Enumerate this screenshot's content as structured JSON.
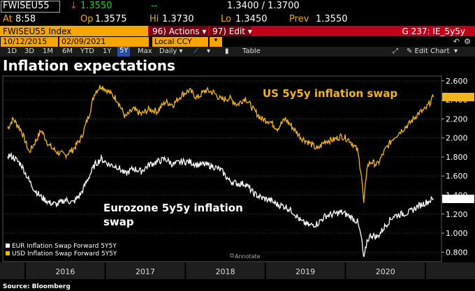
{
  "quote": {
    "ticker": "FWISEU55",
    "last_arrow": "↓",
    "last": "1.3550",
    "change": "--",
    "bid_ask": "1.3400 / 1.3700",
    "at_label": "At",
    "time": "8:58",
    "op_label": "Op",
    "open": "1.3575",
    "hi_label": "Hi",
    "high": "1.3730",
    "lo_label": "Lo",
    "low": "1.3450",
    "prev_label": "Prev",
    "prev": "1.3550"
  },
  "menu": {
    "security": "FWISEU55 Index",
    "actions": "96) Actions ▾",
    "edit": "97) Edit ▾",
    "function": "G 237: IE_5y5y"
  },
  "range": {
    "start": "10/12/2015",
    "end": "02/09/2021",
    "currency": "Local CCY"
  },
  "toolbar": {
    "periods": [
      "1D",
      "3D",
      "1M",
      "6M",
      "YTD",
      "1Y",
      "5Y",
      "Max"
    ],
    "selected_period": "5Y",
    "frequency": "Daily ▾",
    "table": "Table",
    "edit_chart": "✎ Edit Chart"
  },
  "title": "Inflation expectations",
  "source": "Source: Bloomberg",
  "colors": {
    "usd": "#f2b51c",
    "eur": "#ffffff",
    "amber": "#f7a600",
    "header_red": "#c0001a",
    "grid": "#3a3a3a"
  },
  "chart_data": {
    "type": "line",
    "ylim": [
      0.7,
      2.65
    ],
    "yticks": [
      "2.600",
      "2.400",
      "2.200",
      "2.000",
      "1.800",
      "1.600",
      "1.400",
      "1.200",
      "1.000",
      "0.800"
    ],
    "xticks": [
      "2016",
      "2017",
      "2018",
      "2019",
      "2020"
    ],
    "annotate_label": "Annotate",
    "legend": [
      "EUR Inflation Swap Forward 5Y5Y",
      "USD Inflation Swap Forward 5Y5Y"
    ],
    "annotations": {
      "usd": "US 5y5y inflation swap",
      "eur_line1": "Eurozone 5y5y inflation",
      "eur_line2": "swap"
    },
    "series": [
      {
        "name": "USD Inflation Swap Forward 5Y5Y",
        "x": [
          2015.78,
          2015.85,
          2015.95,
          2016.05,
          2016.12,
          2016.2,
          2016.3,
          2016.4,
          2016.5,
          2016.6,
          2016.7,
          2016.8,
          2016.87,
          2016.95,
          2017.05,
          2017.15,
          2017.25,
          2017.35,
          2017.45,
          2017.55,
          2017.65,
          2017.75,
          2017.85,
          2017.95,
          2018.05,
          2018.15,
          2018.25,
          2018.35,
          2018.45,
          2018.55,
          2018.65,
          2018.75,
          2018.85,
          2018.95,
          2019.05,
          2019.15,
          2019.25,
          2019.35,
          2019.45,
          2019.55,
          2019.65,
          2019.75,
          2019.85,
          2019.95,
          2020.05,
          2020.15,
          2020.2,
          2020.23,
          2020.27,
          2020.32,
          2020.4,
          2020.5,
          2020.6,
          2020.7,
          2020.8,
          2020.9,
          2021.0,
          2021.1
        ],
        "values": [
          2.1,
          2.2,
          2.08,
          1.85,
          1.95,
          2.08,
          1.92,
          1.85,
          1.82,
          1.88,
          2.0,
          2.25,
          2.48,
          2.55,
          2.48,
          2.4,
          2.22,
          2.3,
          2.25,
          2.3,
          2.28,
          2.38,
          2.35,
          2.45,
          2.5,
          2.42,
          2.5,
          2.48,
          2.4,
          2.42,
          2.35,
          2.42,
          2.3,
          2.2,
          2.18,
          2.1,
          2.2,
          2.1,
          2.0,
          1.95,
          1.88,
          1.97,
          1.98,
          2.02,
          1.98,
          1.87,
          1.62,
          1.3,
          1.7,
          1.75,
          1.72,
          1.88,
          2.0,
          2.08,
          2.15,
          2.25,
          2.3,
          2.43
        ]
      },
      {
        "name": "EUR Inflation Swap Forward 5Y5Y",
        "x": [
          2015.78,
          2015.85,
          2015.95,
          2016.05,
          2016.12,
          2016.2,
          2016.3,
          2016.4,
          2016.5,
          2016.6,
          2016.7,
          2016.8,
          2016.87,
          2016.95,
          2017.05,
          2017.15,
          2017.25,
          2017.35,
          2017.45,
          2017.55,
          2017.65,
          2017.75,
          2017.85,
          2017.95,
          2018.05,
          2018.15,
          2018.25,
          2018.35,
          2018.45,
          2018.55,
          2018.65,
          2018.75,
          2018.85,
          2018.95,
          2019.05,
          2019.15,
          2019.25,
          2019.35,
          2019.45,
          2019.55,
          2019.65,
          2019.75,
          2019.85,
          2019.95,
          2020.05,
          2020.15,
          2020.2,
          2020.23,
          2020.27,
          2020.32,
          2020.4,
          2020.5,
          2020.6,
          2020.7,
          2020.8,
          2020.9,
          2021.0,
          2021.1
        ],
        "values": [
          1.82,
          1.8,
          1.72,
          1.55,
          1.45,
          1.38,
          1.32,
          1.3,
          1.35,
          1.32,
          1.42,
          1.6,
          1.72,
          1.78,
          1.72,
          1.7,
          1.62,
          1.68,
          1.65,
          1.72,
          1.75,
          1.78,
          1.72,
          1.75,
          1.75,
          1.72,
          1.72,
          1.7,
          1.66,
          1.55,
          1.52,
          1.52,
          1.42,
          1.37,
          1.35,
          1.3,
          1.28,
          1.22,
          1.12,
          1.08,
          1.1,
          1.18,
          1.2,
          1.22,
          1.18,
          1.12,
          0.95,
          0.72,
          0.92,
          0.98,
          0.96,
          1.08,
          1.18,
          1.2,
          1.22,
          1.28,
          1.32,
          1.36
        ]
      }
    ]
  }
}
